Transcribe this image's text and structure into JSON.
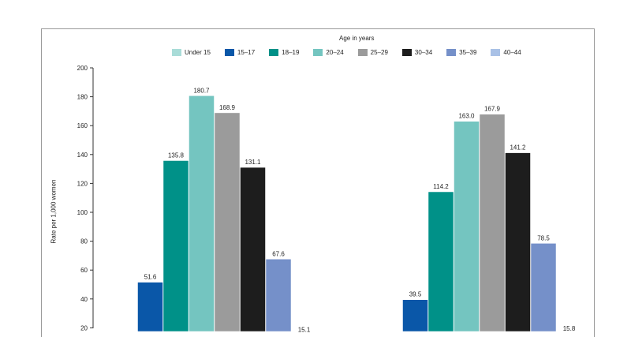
{
  "legend_title": "Age in years",
  "chart_data": {
    "type": "bar",
    "title": "",
    "xlabel": "",
    "ylabel": "Rate per 1,000 women",
    "ylim": [
      0,
      200
    ],
    "yticks": [
      20,
      40,
      60,
      80,
      100,
      120,
      140,
      160,
      180,
      200
    ],
    "categories": [
      "",
      ""
    ],
    "series": [
      {
        "name": "Under 15",
        "color": "#a9dcd8",
        "values": [
          null,
          null
        ],
        "labels": [
          "",
          ""
        ]
      },
      {
        "name": "15–17",
        "color": "#0a57a8",
        "values": [
          51.6,
          39.5
        ],
        "labels": [
          "51.6",
          "39.5"
        ]
      },
      {
        "name": "18–19",
        "color": "#009188",
        "values": [
          135.8,
          114.2
        ],
        "labels": [
          "135.8",
          "114.2"
        ]
      },
      {
        "name": "20–24",
        "color": "#74c5c0",
        "values": [
          180.7,
          163.0
        ],
        "labels": [
          "180.7",
          "163.0"
        ]
      },
      {
        "name": "25–29",
        "color": "#9b9b9b",
        "values": [
          168.9,
          167.9
        ],
        "labels": [
          "168.9",
          "167.9"
        ]
      },
      {
        "name": "30–34",
        "color": "#1d1d1d",
        "values": [
          131.1,
          141.2
        ],
        "labels": [
          "131.1",
          "141.2"
        ]
      },
      {
        "name": "35–39",
        "color": "#7590c9",
        "values": [
          67.6,
          78.5
        ],
        "labels": [
          "67.6",
          "78.5"
        ]
      },
      {
        "name": "40–44",
        "color": "#a9c1e6",
        "values": [
          15.1,
          15.8
        ],
        "labels": [
          "15.1",
          "15.8"
        ]
      }
    ],
    "grid": false,
    "legend": "top"
  }
}
